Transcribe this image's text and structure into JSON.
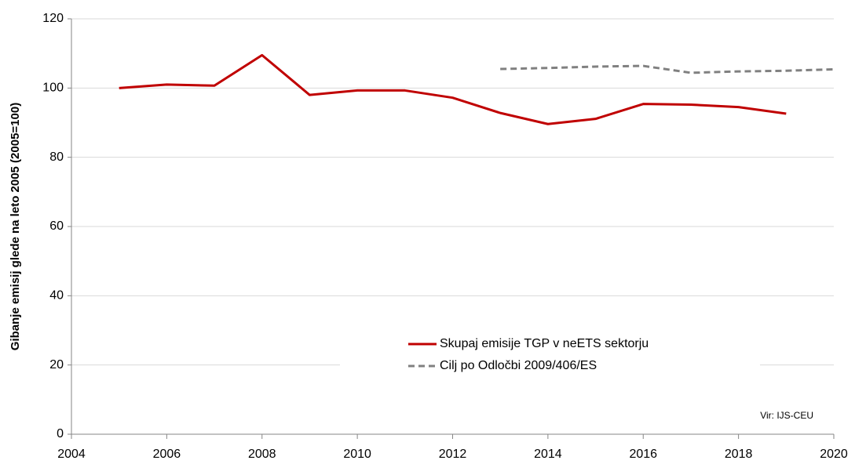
{
  "chart_data": {
    "type": "line",
    "y_label": "Gibanje emisij glede na leto 2005 (2005=100)",
    "annotation": "Vir: IJS-CEU",
    "x": [
      2005,
      2006,
      2007,
      2008,
      2009,
      2010,
      2011,
      2012,
      2013,
      2014,
      2015,
      2016,
      2017,
      2018,
      2019,
      2020
    ],
    "series": [
      {
        "name": "Skupaj emisije TGP v neETS sektorju",
        "color": "#c00000",
        "dash": false,
        "values": [
          100,
          101,
          100.7,
          109.5,
          98,
          99.3,
          99.3,
          97.2,
          92.8,
          89.6,
          91.1,
          95.4,
          95.2,
          94.5,
          92.6,
          null
        ]
      },
      {
        "name": "Cilj po Odločbi 2009/406/ES",
        "color": "#808080",
        "dash": true,
        "values": [
          null,
          null,
          null,
          null,
          null,
          null,
          null,
          null,
          105.5,
          105.8,
          106.2,
          106.4,
          104.4,
          104.8,
          105.0,
          105.4
        ]
      }
    ],
    "xlim": [
      2004,
      2020
    ],
    "xticks": [
      2004,
      2006,
      2008,
      2010,
      2012,
      2014,
      2016,
      2018,
      2020
    ],
    "ylim": [
      0,
      120
    ],
    "yticks": [
      0,
      20,
      40,
      60,
      80,
      100,
      120
    ],
    "grid": true,
    "legend": "lower center"
  }
}
